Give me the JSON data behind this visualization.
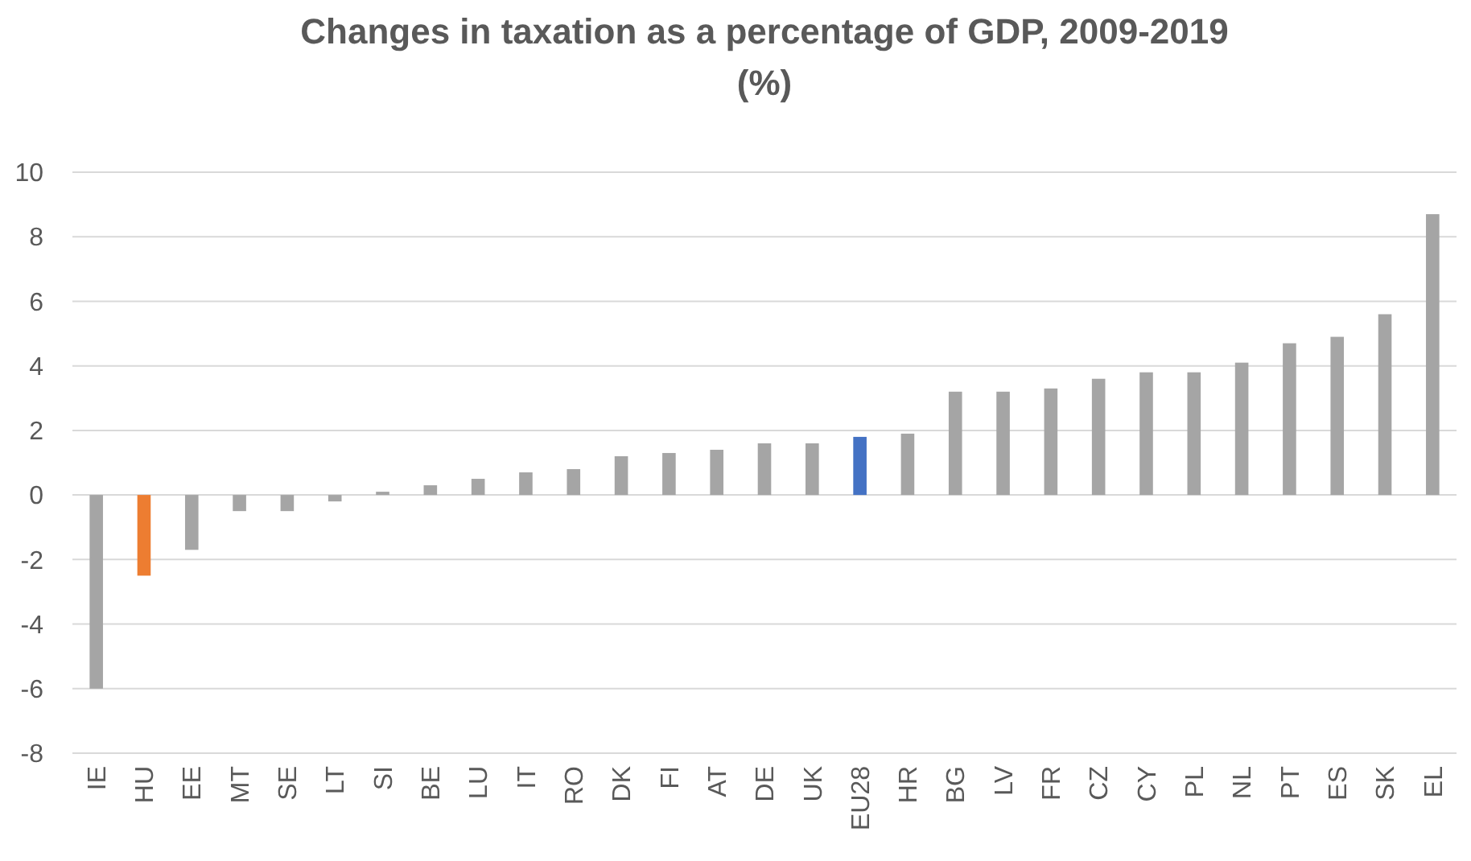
{
  "chart_data": {
    "type": "bar",
    "title": "Changes in taxation as a percentage of GDP, 2009-2019 (%)",
    "categories": [
      "IE",
      "HU",
      "EE",
      "MT",
      "SE",
      "LT",
      "SI",
      "BE",
      "LU",
      "IT",
      "RO",
      "DK",
      "FI",
      "AT",
      "DE",
      "UK",
      "EU28",
      "HR",
      "BG",
      "LV",
      "FR",
      "CZ",
      "CY",
      "PL",
      "NL",
      "PT",
      "ES",
      "SK",
      "EL"
    ],
    "values": [
      -6,
      -2.5,
      -1.7,
      -0.5,
      -0.5,
      -0.2,
      0.1,
      0.3,
      0.5,
      0.7,
      0.8,
      1.2,
      1.3,
      1.4,
      1.6,
      1.6,
      1.8,
      1.9,
      3.2,
      3.2,
      3.3,
      3.6,
      3.8,
      3.8,
      4.1,
      4.7,
      4.9,
      5.6,
      8.7
    ],
    "colors": [
      "#a5a5a5",
      "#ed7d31",
      "#a5a5a5",
      "#a5a5a5",
      "#a5a5a5",
      "#a5a5a5",
      "#a5a5a5",
      "#a5a5a5",
      "#a5a5a5",
      "#a5a5a5",
      "#a5a5a5",
      "#a5a5a5",
      "#a5a5a5",
      "#a5a5a5",
      "#a5a5a5",
      "#a5a5a5",
      "#4472c4",
      "#a5a5a5",
      "#a5a5a5",
      "#a5a5a5",
      "#a5a5a5",
      "#a5a5a5",
      "#a5a5a5",
      "#a5a5a5",
      "#a5a5a5",
      "#a5a5a5",
      "#a5a5a5",
      "#a5a5a5",
      "#a5a5a5"
    ],
    "ylim": [
      -8,
      10
    ],
    "yticks": [
      -8,
      -6,
      -4,
      -2,
      0,
      2,
      4,
      6,
      8,
      10
    ],
    "grid": "y"
  }
}
